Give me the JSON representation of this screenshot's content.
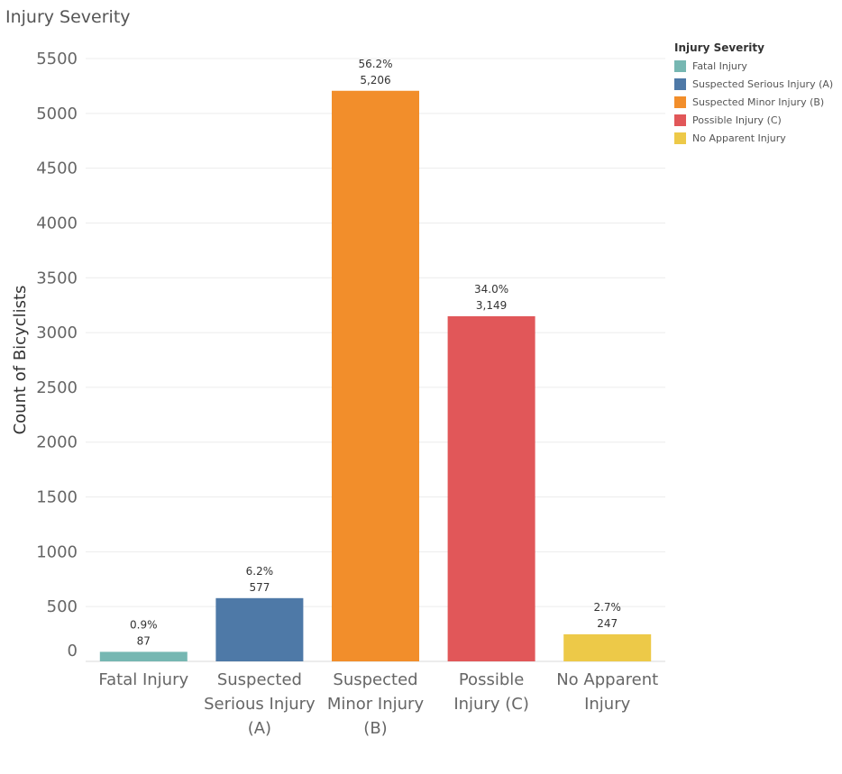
{
  "page": {
    "title": "Injury Severity"
  },
  "legend": {
    "title": "Injury Severity",
    "items": [
      {
        "label": "Fatal Injury",
        "color": "#76b7b2"
      },
      {
        "label": "Suspected Serious Injury (A)",
        "color": "#4e79a7"
      },
      {
        "label": "Suspected Minor Injury (B)",
        "color": "#f28e2b"
      },
      {
        "label": "Possible Injury (C)",
        "color": "#e15759"
      },
      {
        "label": "No Apparent Injury",
        "color": "#edc948"
      }
    ]
  },
  "chart_data": {
    "type": "bar",
    "title": "Injury Severity",
    "ylabel": "Count of Bicyclists",
    "xlabel": "",
    "ylim": [
      0,
      5500
    ],
    "yticks": [
      0,
      500,
      1000,
      1500,
      2000,
      2500,
      3000,
      3500,
      4000,
      4500,
      5000,
      5500
    ],
    "grid": true,
    "legend_position": "top-right",
    "categories": [
      [
        "Fatal Injury"
      ],
      [
        "Suspected",
        "Serious Injury",
        "(A)"
      ],
      [
        "Suspected",
        "Minor Injury",
        "(B)"
      ],
      [
        "Possible",
        "Injury (C)"
      ],
      [
        "No Apparent",
        "Injury"
      ]
    ],
    "values": [
      87,
      577,
      5206,
      3149,
      247
    ],
    "value_labels": [
      "87",
      "577",
      "5,206",
      "3,149",
      "247"
    ],
    "percent_labels": [
      "0.9%",
      "6.2%",
      "56.2%",
      "34.0%",
      "2.7%"
    ],
    "colors": [
      "#76b7b2",
      "#4e79a7",
      "#f28e2b",
      "#e15759",
      "#edc948"
    ]
  }
}
